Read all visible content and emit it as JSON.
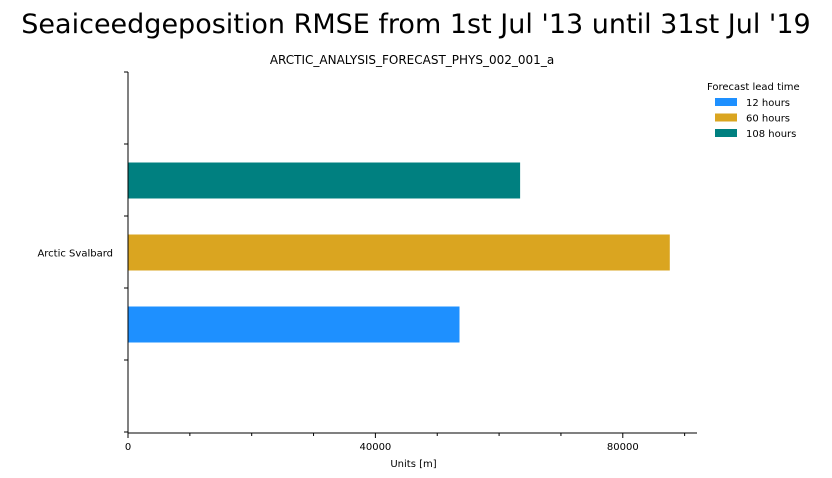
{
  "chart_data": {
    "type": "bar",
    "orientation": "horizontal",
    "title": "Seaiceedgeposition RMSE from 1st Jul '13 until 31st Jul '19",
    "subtitle": "ARCTIC_ANALYSIS_FORECAST_PHYS_002_001_a",
    "xlabel": "Units [m]",
    "ylabel": "",
    "xlim": [
      0,
      92000
    ],
    "x_ticks": [
      0,
      40000,
      80000
    ],
    "x_tick_labels": [
      "0",
      "40000",
      "80000"
    ],
    "x_minor_ticks": [
      10000,
      20000,
      30000,
      50000,
      60000,
      70000,
      90000
    ],
    "categories": [
      "Arctic Svalbard"
    ],
    "legend_title": "Forecast lead time",
    "legend_position": "top-right",
    "grid": false,
    "series": [
      {
        "name": "12 hours",
        "color": "#1e90ff",
        "values": [
          53600
        ]
      },
      {
        "name": "60 hours",
        "color": "#daa520",
        "values": [
          87600
        ]
      },
      {
        "name": "108 hours",
        "color": "#008080",
        "values": [
          63400
        ]
      }
    ]
  }
}
